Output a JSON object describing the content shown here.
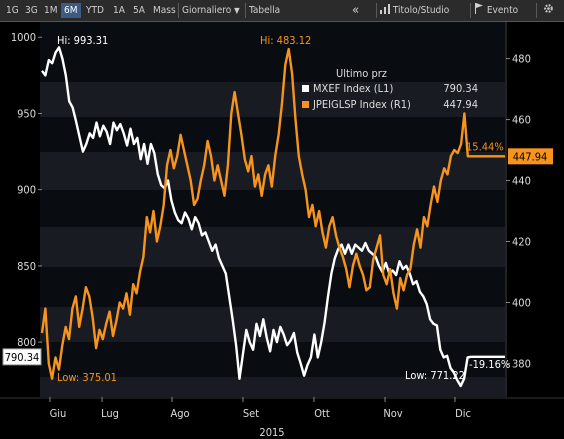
{
  "toolbar": {
    "periods": [
      "1G",
      "3G",
      "1M",
      "6M",
      "YTD",
      "1A",
      "5A",
      "Mass"
    ],
    "active_period": "6M",
    "frequency": "Giornaliero",
    "frequency_arrow": "▼",
    "table_label": "Tabella",
    "collapse_icon": "«",
    "study_icon": "chart-bars-icon",
    "study_label": "Titolo/Studio",
    "event_icon": "flag-icon",
    "event_label": "Evento",
    "settings_icon": "gear-icon"
  },
  "colors": {
    "series_white": "#ffffff",
    "series_orange": "#f7941d",
    "background": "#000000",
    "band_dark": "#0b0f14",
    "band_light": "#1c2128"
  },
  "chart_data": {
    "type": "line",
    "x_ticks": [
      "Giu",
      "Lug",
      "Ago",
      "Set",
      "Ott",
      "Nov",
      "Dic"
    ],
    "x_year": "2015",
    "y_left": {
      "ticks": [
        800,
        850,
        900,
        950,
        1000
      ],
      "range": [
        764,
        1010
      ]
    },
    "y_right": {
      "ticks": [
        380,
        400,
        420,
        440,
        460,
        480
      ],
      "range": [
        369,
        492
      ]
    },
    "legend": {
      "title": "Ultimo prz",
      "items": [
        {
          "name": "MXEF Index  (L1)",
          "value": "790.34"
        },
        {
          "name": "JPEIGLSP Index  (R1)",
          "value": "447.94"
        }
      ]
    },
    "series": [
      {
        "name": "MXEF Index",
        "axis": "left",
        "color": "#ffffff",
        "values": [
          978,
          975,
          985,
          983,
          990,
          993.31,
          986,
          975,
          958,
          954,
          945,
          935,
          925,
          930,
          937,
          934,
          944,
          935,
          942,
          938,
          930,
          944,
          939,
          943,
          937,
          929,
          940,
          930,
          934,
          920,
          930,
          917,
          930,
          924,
          910,
          903,
          901,
          906,
          893,
          885,
          880,
          878,
          885,
          881,
          874,
          882,
          878,
          870,
          872,
          866,
          860,
          864,
          855,
          850,
          845,
          830,
          815,
          798,
          776,
          792,
          808,
          800,
          795,
          812,
          804,
          815,
          803,
          794,
          808,
          800,
          810,
          805,
          798,
          801,
          806,
          793,
          786,
          778,
          785,
          790,
          805,
          790,
          800,
          813,
          830,
          845,
          855,
          861,
          864,
          858,
          864,
          858,
          864,
          862,
          860,
          865,
          860,
          858,
          856,
          850,
          846,
          852,
          845,
          847,
          844,
          853,
          848,
          850,
          845,
          838,
          840,
          833,
          830,
          825,
          815,
          812,
          811,
          795,
          790,
          791,
          783,
          780,
          775,
          771.22,
          776,
          790,
          790.34,
          790.34,
          790.34,
          790.34,
          790.34,
          790.34,
          790.34,
          790.34,
          790.34,
          790.34,
          790.34
        ]
      },
      {
        "name": "JPEIGLSP Index",
        "axis": "right",
        "color": "#f7941d",
        "values": [
          390,
          398,
          380,
          375.01,
          382,
          378,
          386,
          392,
          388,
          398,
          402,
          392,
          398,
          405,
          402,
          395,
          385,
          391,
          388,
          393,
          397,
          389,
          394,
          400,
          398,
          403,
          396,
          406,
          403,
          410,
          415,
          428,
          423,
          430,
          420,
          425,
          432,
          445,
          450,
          444,
          448,
          455,
          450,
          445,
          440,
          432,
          434,
          440,
          445,
          453,
          448,
          440,
          445,
          440,
          435,
          445,
          462,
          469,
          462,
          455,
          447,
          443,
          448,
          438,
          442,
          435,
          442,
          445,
          438,
          448,
          455,
          465,
          478,
          483.12,
          475,
          460,
          448,
          442,
          437,
          428,
          432,
          425,
          430,
          423,
          418,
          425,
          428,
          422,
          418,
          415,
          411,
          405,
          412,
          416,
          412,
          409,
          404,
          405,
          414,
          418,
          422,
          409,
          406,
          411,
          403,
          398,
          408,
          404,
          409,
          411,
          419,
          424,
          418,
          428,
          425,
          432,
          438,
          433,
          440,
          444,
          442,
          448,
          450,
          449,
          452,
          462,
          447.94,
          447.94,
          447.94,
          447.94,
          447.94,
          447.94,
          447.94,
          447.94,
          447.94,
          447.94,
          447.94,
          447.94
        ]
      }
    ],
    "annotations": {
      "left_high": "Hi: 993.31",
      "left_low": "Low: 771.22",
      "right_high": "Hi: 483.12",
      "right_low": "Low: 375.01",
      "pct_white": "-19.16%",
      "pct_orange": "15.44%",
      "last_left": "790.34",
      "last_right": "447.94"
    }
  }
}
